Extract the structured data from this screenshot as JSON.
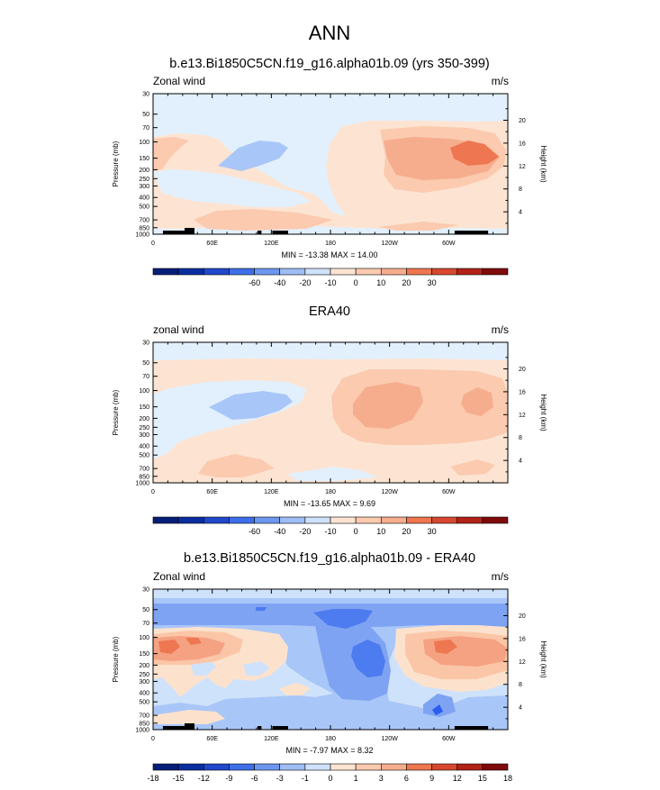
{
  "figure_title": "ANN",
  "colors": {
    "v1": [
      "#e2f0fd",
      "#fde4d2",
      "#fbcaaf",
      "#f6ad8d",
      "#ee7650"
    ],
    "v3": [
      "#2a5ef0",
      "#4d7cf0",
      "#7fa3f3",
      "#a9c6f8",
      "#cfe2fb",
      "#fce2cd",
      "#fbc6a7",
      "#f5a282",
      "#ee7650",
      "#e0472c"
    ],
    "orography": "#000000",
    "border": "#000000"
  },
  "chart_data": [
    {
      "type": "heatmap",
      "title": "b.e13.Bi1850C5CN.f19_g16.alpha01b.09 (yrs 350-399)",
      "left_label": "Zonal wind",
      "units": "m/s",
      "ylabel": "Pressure (mb)",
      "ylabel_right": "Height (km)",
      "x_ticks": [
        "0",
        "60E",
        "120E",
        "180",
        "120W",
        "60W"
      ],
      "y_ticks": [
        "30",
        "50",
        "70",
        "100",
        "150",
        "200",
        "250",
        "300",
        "400",
        "500",
        "700",
        "850",
        "1000"
      ],
      "height_ticks": [
        "20",
        "16",
        "12",
        "8",
        "4"
      ],
      "stats": "MIN = -13.38  MAX =  14.00",
      "colorbar": {
        "colors": [
          "#071e78",
          "#0a2ea0",
          "#1f48cb",
          "#3e6ee9",
          "#6d97ef",
          "#9ebdf5",
          "#cfe2fb",
          "#fde4d2",
          "#fbcaaf",
          "#f6ad8d",
          "#ee7650",
          "#d8472e",
          "#b22217",
          "#7f0a0c"
        ],
        "labels": [
          "-60",
          "-40",
          "-20",
          "-10",
          "0",
          "10",
          "20",
          "30"
        ]
      }
    },
    {
      "type": "heatmap",
      "title": "ERA40",
      "left_label": "zonal wind",
      "units": "m/s",
      "ylabel": "Pressure (mb)",
      "ylabel_right": "Height (km)",
      "x_ticks": [
        "0",
        "60E",
        "120E",
        "180",
        "120W",
        "60W"
      ],
      "y_ticks": [
        "30",
        "50",
        "70",
        "100",
        "150",
        "200",
        "250",
        "300",
        "400",
        "500",
        "700",
        "850",
        "1000"
      ],
      "height_ticks": [
        "20",
        "16",
        "12",
        "8",
        "4"
      ],
      "stats": "MIN = -13.65  MAX =  9.69",
      "colorbar": {
        "colors": [
          "#071e78",
          "#0a2ea0",
          "#1f48cb",
          "#3e6ee9",
          "#6d97ef",
          "#9ebdf5",
          "#cfe2fb",
          "#fde4d2",
          "#fbcaaf",
          "#f6ad8d",
          "#ee7650",
          "#d8472e",
          "#b22217",
          "#7f0a0c"
        ],
        "labels": [
          "-60",
          "-40",
          "-20",
          "-10",
          "0",
          "10",
          "20",
          "30"
        ]
      }
    },
    {
      "type": "heatmap",
      "title": "b.e13.Bi1850C5CN.f19_g16.alpha01b.09 - ERA40",
      "left_label": "Zonal wind",
      "units": "m/s",
      "ylabel": "Pressure (mb)",
      "ylabel_right": "Height (km)",
      "x_ticks": [
        "0",
        "60E",
        "120E",
        "180",
        "120W",
        "60W"
      ],
      "y_ticks": [
        "30",
        "50",
        "70",
        "100",
        "150",
        "200",
        "250",
        "300",
        "400",
        "500",
        "700",
        "850",
        "1000"
      ],
      "height_ticks": [
        "20",
        "16",
        "12",
        "8",
        "4"
      ],
      "stats": "MIN = -7.97  MAX =  8.32",
      "colorbar": {
        "colors": [
          "#071e78",
          "#0a2ea0",
          "#1f48cb",
          "#3e6ee9",
          "#6d97ef",
          "#9ebdf5",
          "#cfe2fb",
          "#fde4d2",
          "#fbcaaf",
          "#f6ad8d",
          "#ee7650",
          "#d8472e",
          "#b22217",
          "#7f0a0c"
        ],
        "labels": [
          "-18",
          "-15",
          "-12",
          "-9",
          "-6",
          "-3",
          "-1",
          "0",
          "1",
          "3",
          "6",
          "9",
          "12",
          "15",
          "18"
        ]
      }
    }
  ]
}
